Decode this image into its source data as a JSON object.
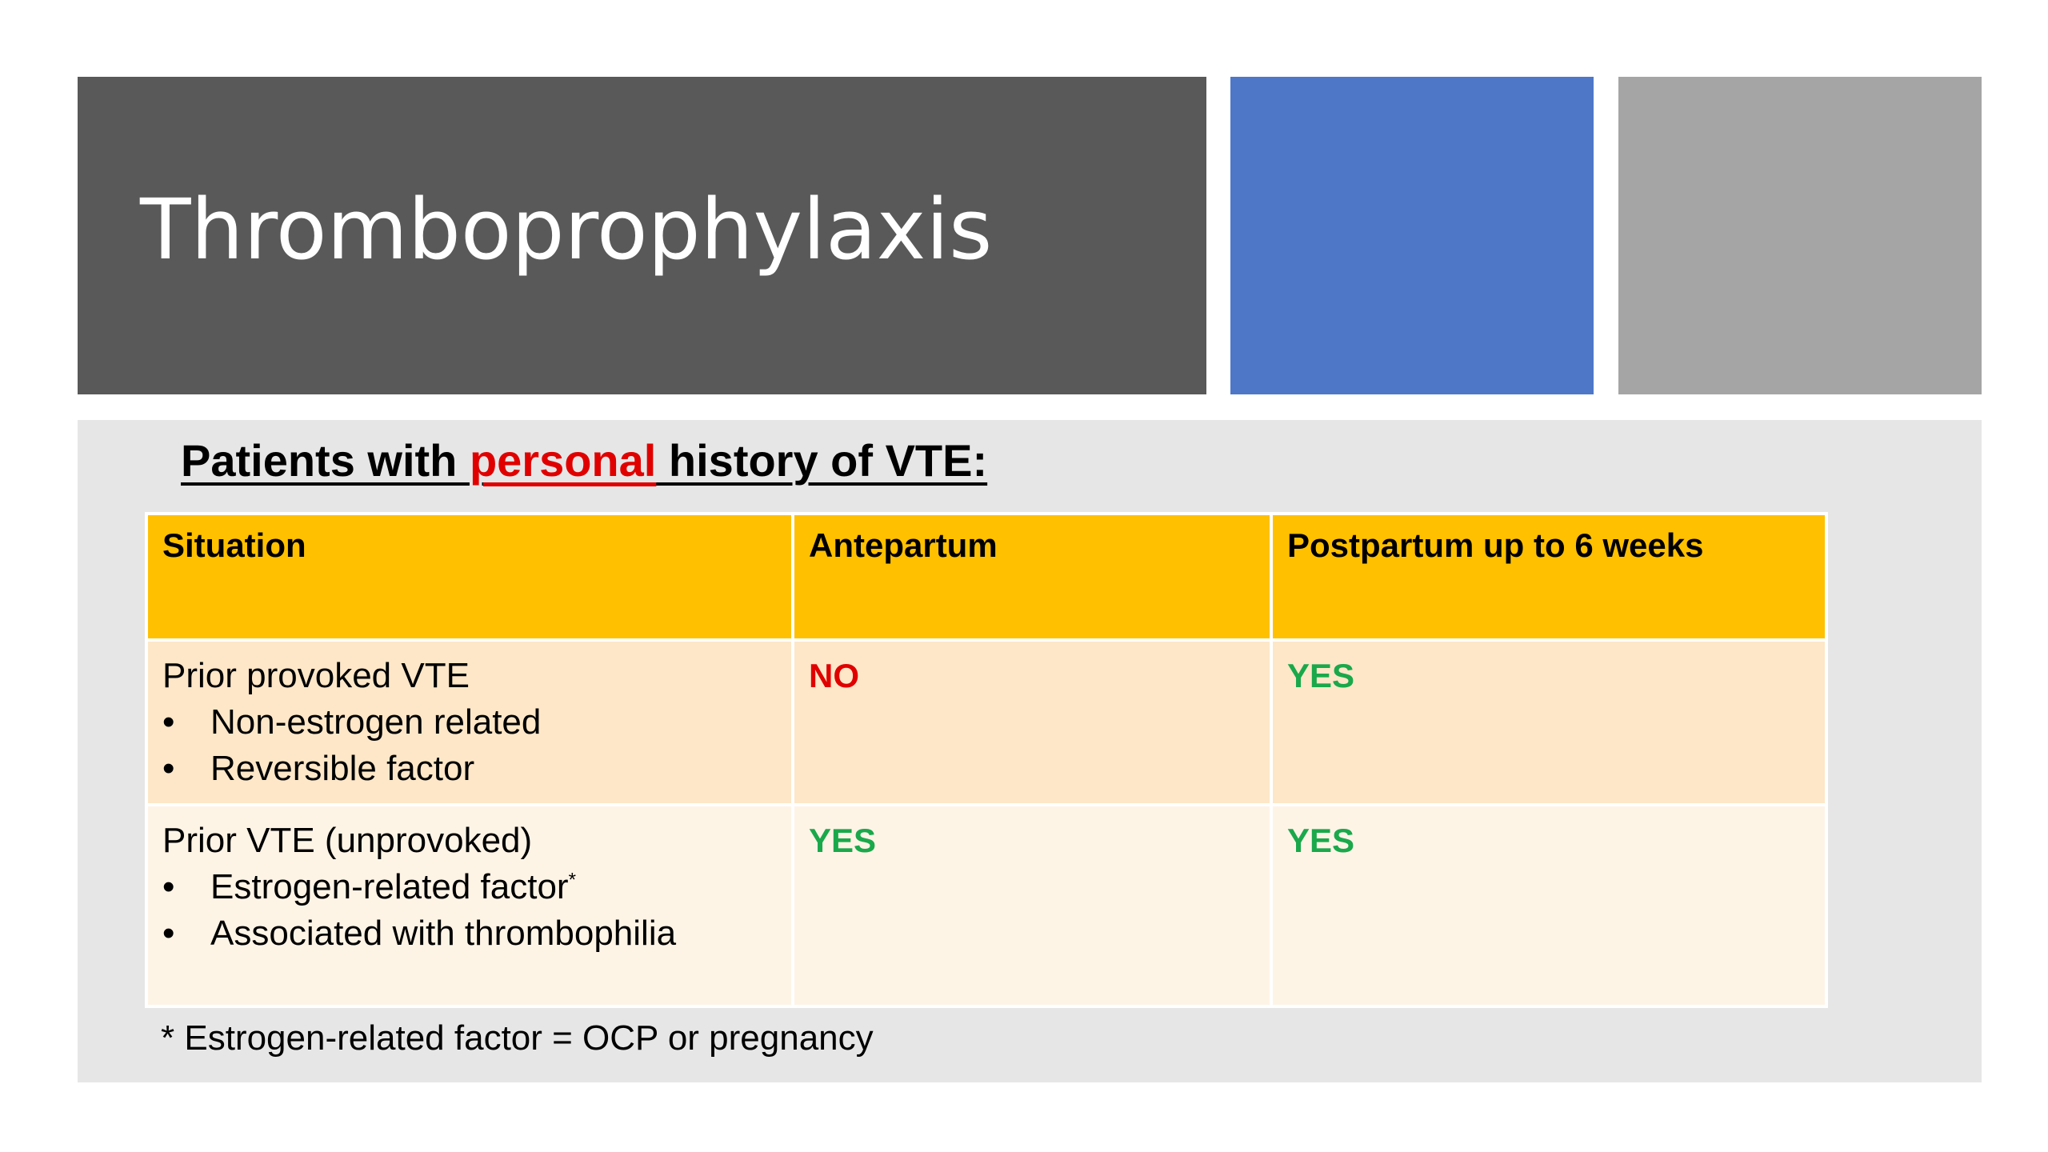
{
  "title": "Thromboprophylaxis",
  "colors": {
    "title_block": "#595959",
    "blue_block": "#4e78c7",
    "gray_block": "#a5a5a5",
    "panel": "#e6e6e6",
    "header_fill": "#ffc000",
    "row1_fill": "#fde7c8",
    "row2_fill": "#fef4e6",
    "emphasis_red": "#e00000",
    "no_red": "#e00000",
    "yes_green": "#1aa84b"
  },
  "heading": {
    "prefix": "Patients with ",
    "emphasis": "personal",
    "suffix": " history of VTE:"
  },
  "table": {
    "headers": [
      "Situation",
      "Antepartum",
      "Postpartum up to 6 weeks"
    ],
    "rows": [
      {
        "situation": "Prior provoked VTE",
        "bullets": [
          "Non-estrogen related",
          "Reversible factor"
        ],
        "antepartum": "NO",
        "postpartum": "YES"
      },
      {
        "situation": "Prior VTE (unprovoked)",
        "bullets": [
          "Estrogen-related factor",
          "Associated with thrombophilia"
        ],
        "bullet_marker": "*",
        "antepartum": "YES",
        "postpartum": "YES"
      }
    ]
  },
  "footnote": "* Estrogen-related factor = OCP or pregnancy"
}
